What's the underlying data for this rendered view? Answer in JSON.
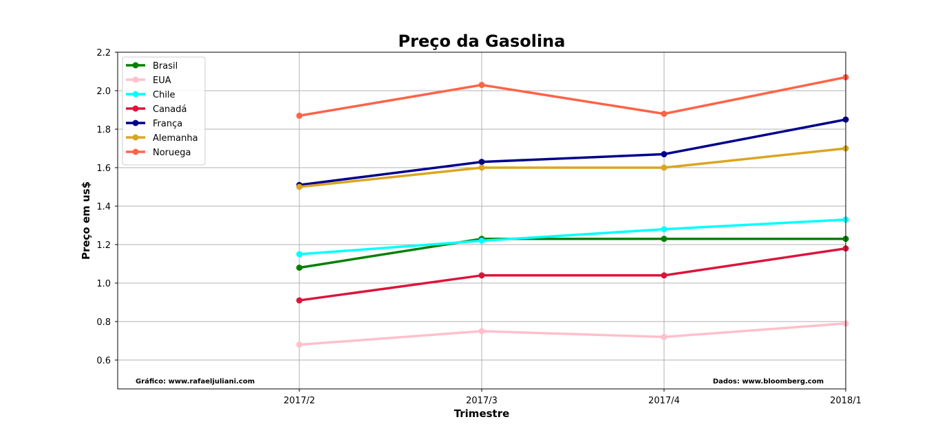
{
  "chart_data": {
    "type": "line",
    "title": "Preço da Gasolina",
    "xlabel": "Trimestre",
    "ylabel": "Preço em us$",
    "categories": [
      "2017/2",
      "2017/3",
      "2017/4",
      "2018/1"
    ],
    "ylim": [
      0.45,
      2.2
    ],
    "yticks": [
      "0.6",
      "0.8",
      "1.0",
      "1.2",
      "1.4",
      "1.6",
      "1.8",
      "2.0",
      "2.2"
    ],
    "grid": true,
    "legend_position": "top-left",
    "series": [
      {
        "name": "Brasil",
        "color": "#008000",
        "values": [
          1.08,
          1.23,
          1.23,
          1.23
        ]
      },
      {
        "name": "EUA",
        "color": "#ffc0cb",
        "values": [
          0.68,
          0.75,
          0.72,
          0.79
        ]
      },
      {
        "name": "Chile",
        "color": "#00ffff",
        "values": [
          1.15,
          1.22,
          1.28,
          1.33
        ]
      },
      {
        "name": "Canadá",
        "color": "#dc143c",
        "values": [
          0.91,
          1.04,
          1.04,
          1.18
        ]
      },
      {
        "name": "França",
        "color": "#00008b",
        "values": [
          1.51,
          1.63,
          1.67,
          1.85
        ]
      },
      {
        "name": "Alemanha",
        "color": "#daa520",
        "values": [
          1.5,
          1.6,
          1.6,
          1.7
        ]
      },
      {
        "name": "Noruega",
        "color": "#ff6347",
        "values": [
          1.87,
          2.03,
          1.88,
          2.07
        ]
      }
    ],
    "annotations": {
      "left": "Gráfico: www.rafaeljuliani.com",
      "right": "Dados: www.bloomberg.com"
    }
  }
}
